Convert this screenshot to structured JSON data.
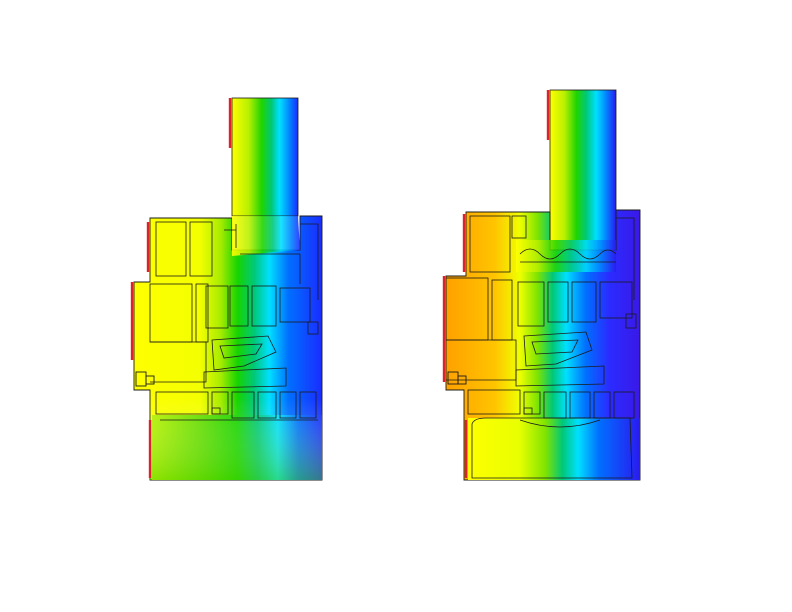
{
  "figure": {
    "caption": "",
    "panels": [
      {
        "id": "left",
        "visible_text": ""
      },
      {
        "id": "right",
        "visible_text": ""
      }
    ]
  },
  "color_scale": {
    "hot": "#ff8a00",
    "warm": "#ffd400",
    "yellow": "#ffff00",
    "yellow_green": "#c8f000",
    "green": "#7ee000",
    "bright_green": "#18d400",
    "teal": "#00c878",
    "cyan": "#00e0ff",
    "light_blue": "#008cff",
    "blue": "#1a2cff",
    "deep_blue": "#2a1af0",
    "outline": "#1b1b1b",
    "edge_red": "#e0202a"
  }
}
